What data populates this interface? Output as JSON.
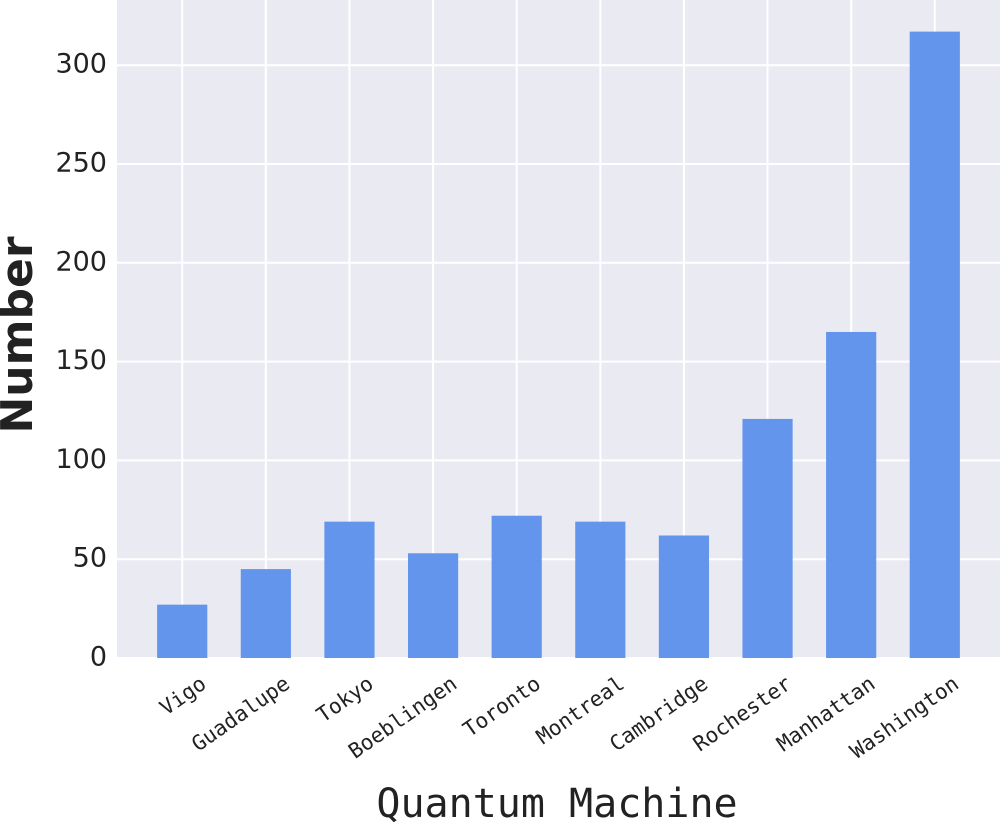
{
  "chart_data": {
    "type": "bar",
    "x_label": "Quantum Machine",
    "y_label": "Number",
    "categories": [
      "Vigo",
      "Guadalupe",
      "Tokyo",
      "Boeblingen",
      "Toronto",
      "Montreal",
      "Cambridge",
      "Rochester",
      "Manhattan",
      "Washington"
    ],
    "values": [
      27,
      45,
      69,
      53,
      72,
      69,
      62,
      121,
      165,
      317
    ],
    "color": "#6495ed",
    "ylim": [
      0,
      333
    ],
    "yticks": [
      0,
      50,
      100,
      150,
      200,
      250,
      300
    ],
    "grid": true
  }
}
